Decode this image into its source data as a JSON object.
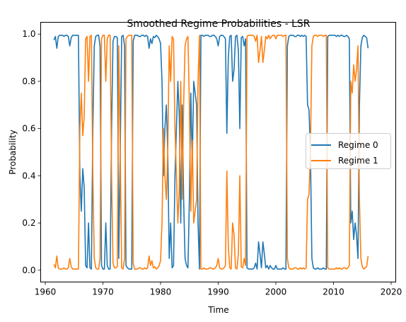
{
  "chart_data": {
    "type": "line",
    "title": "Smoothed Regime Probabilities - LSR",
    "xlabel": "Time",
    "ylabel": "Probability",
    "xlim": [
      1959.2,
      2020.8
    ],
    "ylim": [
      -0.05,
      1.05
    ],
    "xticks": [
      1960,
      1970,
      1980,
      1990,
      2000,
      2010,
      2020
    ],
    "yticks": [
      0.0,
      0.2,
      0.4,
      0.6,
      0.8,
      1.0
    ],
    "ytick_labels": [
      "0.0",
      "0.2",
      "0.4",
      "0.6",
      "0.8",
      "1.0"
    ],
    "grid": false,
    "legend_position": "center-right",
    "x_step": 0.25,
    "series": [
      {
        "name": "Regime 0",
        "color": "#1f77b4",
        "x_start": 1961.5,
        "x_step": 0.25,
        "values": [
          0.975,
          0.99,
          0.94,
          0.99,
          0.995,
          0.995,
          0.995,
          0.99,
          0.995,
          0.995,
          0.99,
          0.95,
          0.985,
          0.995,
          0.995,
          0.995,
          0.995,
          0.995,
          0.4,
          0.25,
          0.43,
          0.35,
          0.02,
          0.01,
          0.2,
          0.01,
          0.005,
          0.6,
          0.95,
          0.99,
          0.995,
          0.995,
          0.95,
          0.02,
          0.005,
          0.005,
          0.2,
          0.02,
          0.005,
          0.005,
          0.6,
          0.97,
          0.99,
          0.99,
          0.985,
          0.05,
          0.5,
          0.99,
          0.995,
          0.95,
          0.02,
          0.01,
          0.005,
          0.005,
          0.005,
          0.97,
          0.995,
          0.995,
          0.995,
          0.99,
          0.99,
          0.995,
          0.995,
          0.99,
          0.995,
          0.99,
          0.94,
          0.98,
          0.96,
          0.99,
          0.985,
          0.995,
          0.99,
          0.98,
          0.96,
          0.8,
          0.4,
          0.6,
          0.7,
          0.5,
          0.05,
          0.2,
          0.01,
          0.02,
          0.4,
          0.6,
          0.8,
          0.65,
          0.2,
          0.7,
          0.3,
          0.05,
          0.02,
          0.01,
          0.3,
          0.75,
          0.45,
          0.8,
          0.75,
          0.7,
          0.2,
          0.005,
          0.995,
          0.995,
          0.99,
          0.995,
          0.995,
          0.995,
          0.99,
          0.99,
          0.995,
          0.995,
          0.99,
          0.98,
          0.95,
          0.99,
          0.995,
          0.995,
          0.99,
          0.98,
          0.58,
          0.9,
          0.99,
          0.995,
          0.8,
          0.85,
          0.99,
          0.995,
          0.93,
          0.6,
          0.985,
          0.99,
          0.95,
          0.98,
          0.01,
          0.005,
          0.005,
          0.005,
          0.005,
          0.01,
          0.03,
          0.005,
          0.12,
          0.07,
          0.01,
          0.12,
          0.07,
          0.01,
          0.02,
          0.005,
          0.02,
          0.01,
          0.005,
          0.005,
          0.02,
          0.005,
          0.005,
          0.005,
          0.005,
          0.01,
          0.005,
          0.005,
          0.95,
          0.99,
          0.995,
          0.995,
          0.995,
          0.99,
          0.99,
          0.995,
          0.995,
          0.99,
          0.995,
          0.99,
          0.995,
          0.99,
          0.7,
          0.68,
          0.5,
          0.05,
          0.01,
          0.005,
          0.005,
          0.01,
          0.005,
          0.005,
          0.005,
          0.01,
          0.005,
          0.005,
          0.99,
          0.995,
          0.995,
          0.995,
          0.995,
          0.995,
          0.99,
          0.995,
          0.99,
          0.995,
          0.995,
          0.99,
          0.99,
          0.995,
          0.99,
          0.98,
          0.2,
          0.25,
          0.13,
          0.2,
          0.15,
          0.05,
          0.7,
          0.95,
          0.985,
          0.995,
          0.99,
          0.985,
          0.94
        ]
      },
      {
        "name": "Regime 1",
        "color": "#ff7f0e",
        "x_start": 1961.5,
        "x_step": 0.25,
        "values": [
          0.025,
          0.01,
          0.06,
          0.01,
          0.005,
          0.005,
          0.005,
          0.01,
          0.005,
          0.005,
          0.01,
          0.05,
          0.015,
          0.005,
          0.005,
          0.005,
          0.005,
          0.005,
          0.6,
          0.75,
          0.57,
          0.65,
          0.98,
          0.99,
          0.8,
          0.99,
          0.995,
          0.4,
          0.05,
          0.01,
          0.005,
          0.005,
          0.05,
          0.98,
          0.995,
          0.995,
          0.8,
          0.98,
          0.995,
          0.995,
          0.4,
          0.03,
          0.01,
          0.01,
          0.015,
          0.95,
          0.5,
          0.01,
          0.005,
          0.05,
          0.98,
          0.99,
          0.995,
          0.995,
          0.995,
          0.03,
          0.005,
          0.005,
          0.005,
          0.01,
          0.01,
          0.005,
          0.005,
          0.01,
          0.005,
          0.01,
          0.06,
          0.02,
          0.04,
          0.01,
          0.015,
          0.005,
          0.01,
          0.02,
          0.04,
          0.2,
          0.6,
          0.4,
          0.3,
          0.5,
          0.95,
          0.8,
          0.99,
          0.98,
          0.6,
          0.4,
          0.2,
          0.35,
          0.8,
          0.3,
          0.7,
          0.95,
          0.98,
          0.99,
          0.7,
          0.25,
          0.55,
          0.2,
          0.25,
          0.3,
          0.8,
          0.995,
          0.005,
          0.005,
          0.01,
          0.005,
          0.005,
          0.005,
          0.01,
          0.01,
          0.005,
          0.005,
          0.01,
          0.02,
          0.05,
          0.01,
          0.005,
          0.005,
          0.01,
          0.02,
          0.42,
          0.1,
          0.01,
          0.005,
          0.2,
          0.15,
          0.01,
          0.005,
          0.07,
          0.4,
          0.015,
          0.01,
          0.05,
          0.02,
          0.99,
          0.995,
          0.995,
          0.995,
          0.995,
          0.99,
          0.97,
          0.995,
          0.88,
          0.93,
          0.99,
          0.88,
          0.93,
          0.99,
          0.98,
          0.995,
          0.98,
          0.99,
          0.995,
          0.995,
          0.98,
          0.995,
          0.995,
          0.995,
          0.995,
          0.99,
          0.995,
          0.995,
          0.05,
          0.01,
          0.005,
          0.005,
          0.005,
          0.01,
          0.01,
          0.005,
          0.005,
          0.01,
          0.005,
          0.01,
          0.005,
          0.01,
          0.3,
          0.32,
          0.5,
          0.95,
          0.99,
          0.995,
          0.995,
          0.99,
          0.995,
          0.995,
          0.995,
          0.99,
          0.995,
          0.995,
          0.01,
          0.005,
          0.005,
          0.005,
          0.005,
          0.005,
          0.01,
          0.005,
          0.01,
          0.005,
          0.005,
          0.01,
          0.01,
          0.005,
          0.01,
          0.02,
          0.8,
          0.75,
          0.87,
          0.8,
          0.85,
          0.95,
          0.3,
          0.05,
          0.015,
          0.005,
          0.01,
          0.015,
          0.06
        ]
      }
    ]
  }
}
